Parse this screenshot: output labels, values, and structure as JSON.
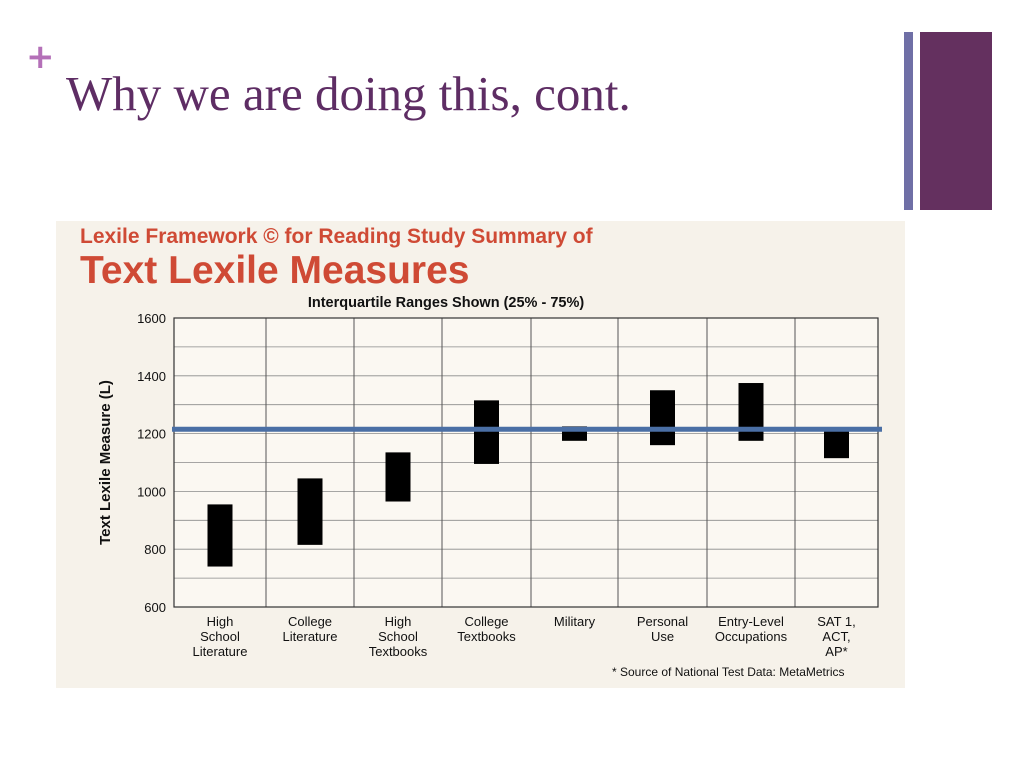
{
  "slide": {
    "plus": "+",
    "title": "Why we are doing this, cont."
  },
  "colors": {
    "title": "#5e2d64",
    "plus": "#b470b8",
    "accent_thin": "#6f6fa6",
    "accent_thick": "#64305f",
    "chart_heading": "#cf4a35",
    "reference_line": "#4a6fa5",
    "bars": "#000000"
  },
  "chart_data": {
    "type": "bar",
    "style": "floating-range",
    "title": "Lexile Framework © for Reading Study Summary of",
    "subtitle": "Text Lexile Measures",
    "note": "Interquartile Ranges Shown (25% - 75%)",
    "ylabel": "Text Lexile Measure (L)",
    "xlabel": "",
    "ylim": [
      600,
      1600
    ],
    "yticks": [
      600,
      800,
      1000,
      1200,
      1400,
      1600
    ],
    "grid": true,
    "categories": [
      [
        "High",
        "School",
        "Literature"
      ],
      [
        "College",
        "Literature"
      ],
      [
        "High",
        "School",
        "Textbooks"
      ],
      [
        "College",
        "Textbooks"
      ],
      [
        "Military"
      ],
      [
        "Personal",
        "Use"
      ],
      [
        "Entry-Level",
        "Occupations"
      ],
      [
        "SAT 1,",
        "ACT,",
        "AP*"
      ]
    ],
    "ranges": [
      [
        740,
        955
      ],
      [
        815,
        1045
      ],
      [
        965,
        1135
      ],
      [
        1095,
        1315
      ],
      [
        1175,
        1225
      ],
      [
        1160,
        1350
      ],
      [
        1175,
        1375
      ],
      [
        1115,
        1210
      ]
    ],
    "reference_line": 1215,
    "source": "* Source of National Test Data: MetaMetrics"
  }
}
